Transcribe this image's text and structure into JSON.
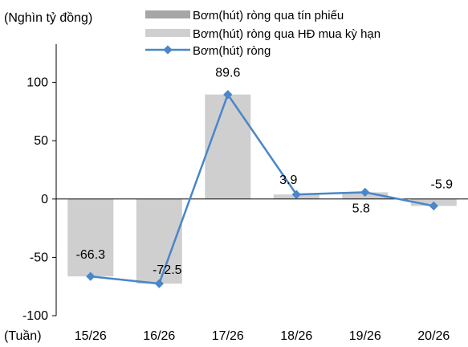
{
  "chart_data": {
    "type": "bar",
    "unit_label": "(Nghìn tỷ đồng)",
    "x_axis_label": "(Tuần)",
    "categories": [
      "15/26",
      "16/26",
      "17/26",
      "18/26",
      "19/26",
      "20/26"
    ],
    "series": [
      {
        "name": "Bơm(hút) ròng qua tín phiếu",
        "type": "bar",
        "color": "#a6a6a6",
        "values": [
          0,
          0,
          0,
          0,
          0,
          0
        ]
      },
      {
        "name": "Bơm(hút) ròng qua HĐ mua kỳ hạn",
        "type": "bar",
        "color": "#cfcfcf",
        "values": [
          -66.3,
          -72.5,
          89.6,
          3.9,
          5.8,
          -5.9
        ]
      },
      {
        "name": "Bơm(hút) ròng",
        "type": "line",
        "color": "#4a86c8",
        "marker": "diamond",
        "values": [
          -66.3,
          -72.5,
          89.6,
          3.9,
          5.8,
          -5.9
        ]
      }
    ],
    "data_labels": [
      "-66.3",
      "-72.5",
      "89.6",
      "3.9",
      "5.8",
      "-5.9"
    ],
    "y_ticks": [
      "-100",
      "-50",
      "0",
      "50",
      "100"
    ],
    "ylim": [
      -100,
      150
    ],
    "legend_position": "top",
    "grid": false
  }
}
